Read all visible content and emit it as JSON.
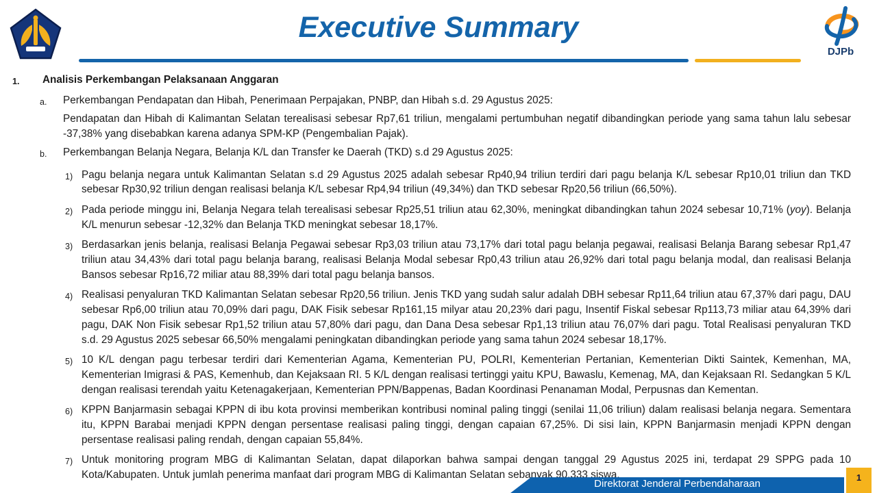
{
  "slide": {
    "title": "Executive Summary",
    "footer_text": "Direktorat Jenderal Perbendaharaan",
    "page_number": "1",
    "logo_right_label": "DJPb"
  },
  "colors": {
    "title_blue": "#1464aa",
    "accent_gold": "#f2b01e",
    "footer_blue": "#0e62ae",
    "body_text": "#1c1c1c"
  },
  "content": {
    "section_number": "1.",
    "section_title": "Analisis Perkembangan Pelaksanaan Anggaran",
    "item_a_label": "a.",
    "item_a_title": "Perkembangan Pendapatan dan Hibah, Penerimaan Perpajakan, PNBP, dan Hibah s.d. 29 Agustus 2025:",
    "item_a_body": "Pendapatan dan Hibah di Kalimantan Selatan terealisasi sebesar Rp7,61 triliun, mengalami pertumbuhan negatif dibandingkan periode yang sama tahun lalu sebesar -37,38% yang disebabkan karena adanya SPM-KP (Pengembalian Pajak).",
    "item_b_label": "b.",
    "item_b_title": "Perkembangan Belanja Negara, Belanja K/L dan Transfer ke Daerah (TKD) s.d 29 Agustus 2025:",
    "numbered_items": [
      {
        "label": "1)",
        "segments": [
          {
            "t": "Pagu belanja negara untuk Kalimantan Selatan s.d 29 Agustus 2025 adalah sebesar Rp40,94 triliun terdiri dari pagu belanja K/L sebesar Rp10,01 triliun dan TKD sebesar Rp30,92 triliun dengan realisasi belanja K/L sebesar Rp4,94 triliun (49,34%) dan TKD sebesar Rp20,56 triliun (66,50%)."
          }
        ]
      },
      {
        "label": "2)",
        "segments": [
          {
            "t": "Pada periode minggu ini, Belanja Negara telah terealisasi sebesar Rp25,51 triliun atau 62,30%, meningkat dibandingkan tahun 2024 sebesar 10,71% ("
          },
          {
            "t": "yoy",
            "i": true
          },
          {
            "t": "). Belanja K/L menurun sebesar -12,32% dan Belanja TKD meningkat sebesar 18,17%."
          }
        ]
      },
      {
        "label": "3)",
        "segments": [
          {
            "t": "Berdasarkan jenis belanja, realisasi Belanja Pegawai sebesar Rp3,03 triliun atau 73,17% dari total pagu belanja pegawai, realisasi Belanja Barang sebesar Rp1,47 triliun atau 34,43% dari total pagu belanja barang, realisasi Belanja Modal sebesar Rp0,43 triliun atau 26,92% dari total pagu belanja modal, dan realisasi Belanja Bansos sebesar Rp16,72 miliar atau 88,39% dari total pagu belanja bansos."
          }
        ]
      },
      {
        "label": "4)",
        "segments": [
          {
            "t": "Realisasi penyaluran TKD Kalimantan Selatan sebesar Rp20,56 triliun. Jenis TKD yang sudah salur adalah DBH sebesar Rp11,64 triliun atau 67,37% dari pagu, DAU sebesar Rp6,00 triliun atau 70,09% dari pagu, DAK Fisik sebesar Rp161,15 milyar atau 20,23% dari pagu, Insentif Fiskal sebesar Rp113,73 miliar atau 64,39% dari pagu, DAK Non Fisik sebesar Rp1,52 triliun atau 57,80% dari pagu, dan Dana Desa sebesar Rp1,13 triliun atau 76,07% dari pagu. Total Realisasi penyaluran TKD s.d. 29 Agustus 2025 sebesar 66,50% mengalami peningkatan dibandingkan periode yang sama tahun 2024 sebesar 18,17%."
          }
        ]
      },
      {
        "label": "5)",
        "segments": [
          {
            "t": "10 K/L dengan pagu terbesar terdiri dari Kementerian Agama, Kementerian PU, POLRI, Kementerian Pertanian, Kementerian Dikti Saintek, Kemenhan, MA, Kementerian Imigrasi & PAS, Kemenhub, dan Kejaksaan RI. 5 K/L dengan realisasi tertinggi yaitu KPU, Bawaslu, Kemenag, MA, dan Kejaksaan RI. Sedangkan 5 K/L dengan realisasi terendah yaitu Ketenagakerjaan, Kementerian PPN/Bappenas, Badan Koordinasi Penanaman Modal, Perpusnas dan Kementan."
          }
        ]
      },
      {
        "label": "6)",
        "segments": [
          {
            "t": "KPPN Banjarmasin sebagai KPPN di ibu kota provinsi memberikan kontribusi nominal paling tinggi (senilai 11,06 triliun) dalam realisasi belanja negara. Sementara itu, KPPN Barabai menjadi KPPN dengan persentase realisasi paling tinggi, dengan capaian 67,25%. Di sisi lain, KPPN Banjarmasin menjadi KPPN dengan persentase realisasi paling rendah, dengan capaian 55,84%."
          }
        ]
      },
      {
        "label": "7)",
        "segments": [
          {
            "t": "Untuk monitoring program MBG di Kalimantan Selatan, dapat dilaporkan bahwa sampai dengan tanggal 29 Agustus 2025 ini, terdapat 29 SPPG pada 10 Kota/Kabupaten. Untuk jumlah penerima manfaat dari program MBG di Kalimantan Selatan sebanyak 90.333 siswa."
          }
        ]
      }
    ]
  }
}
